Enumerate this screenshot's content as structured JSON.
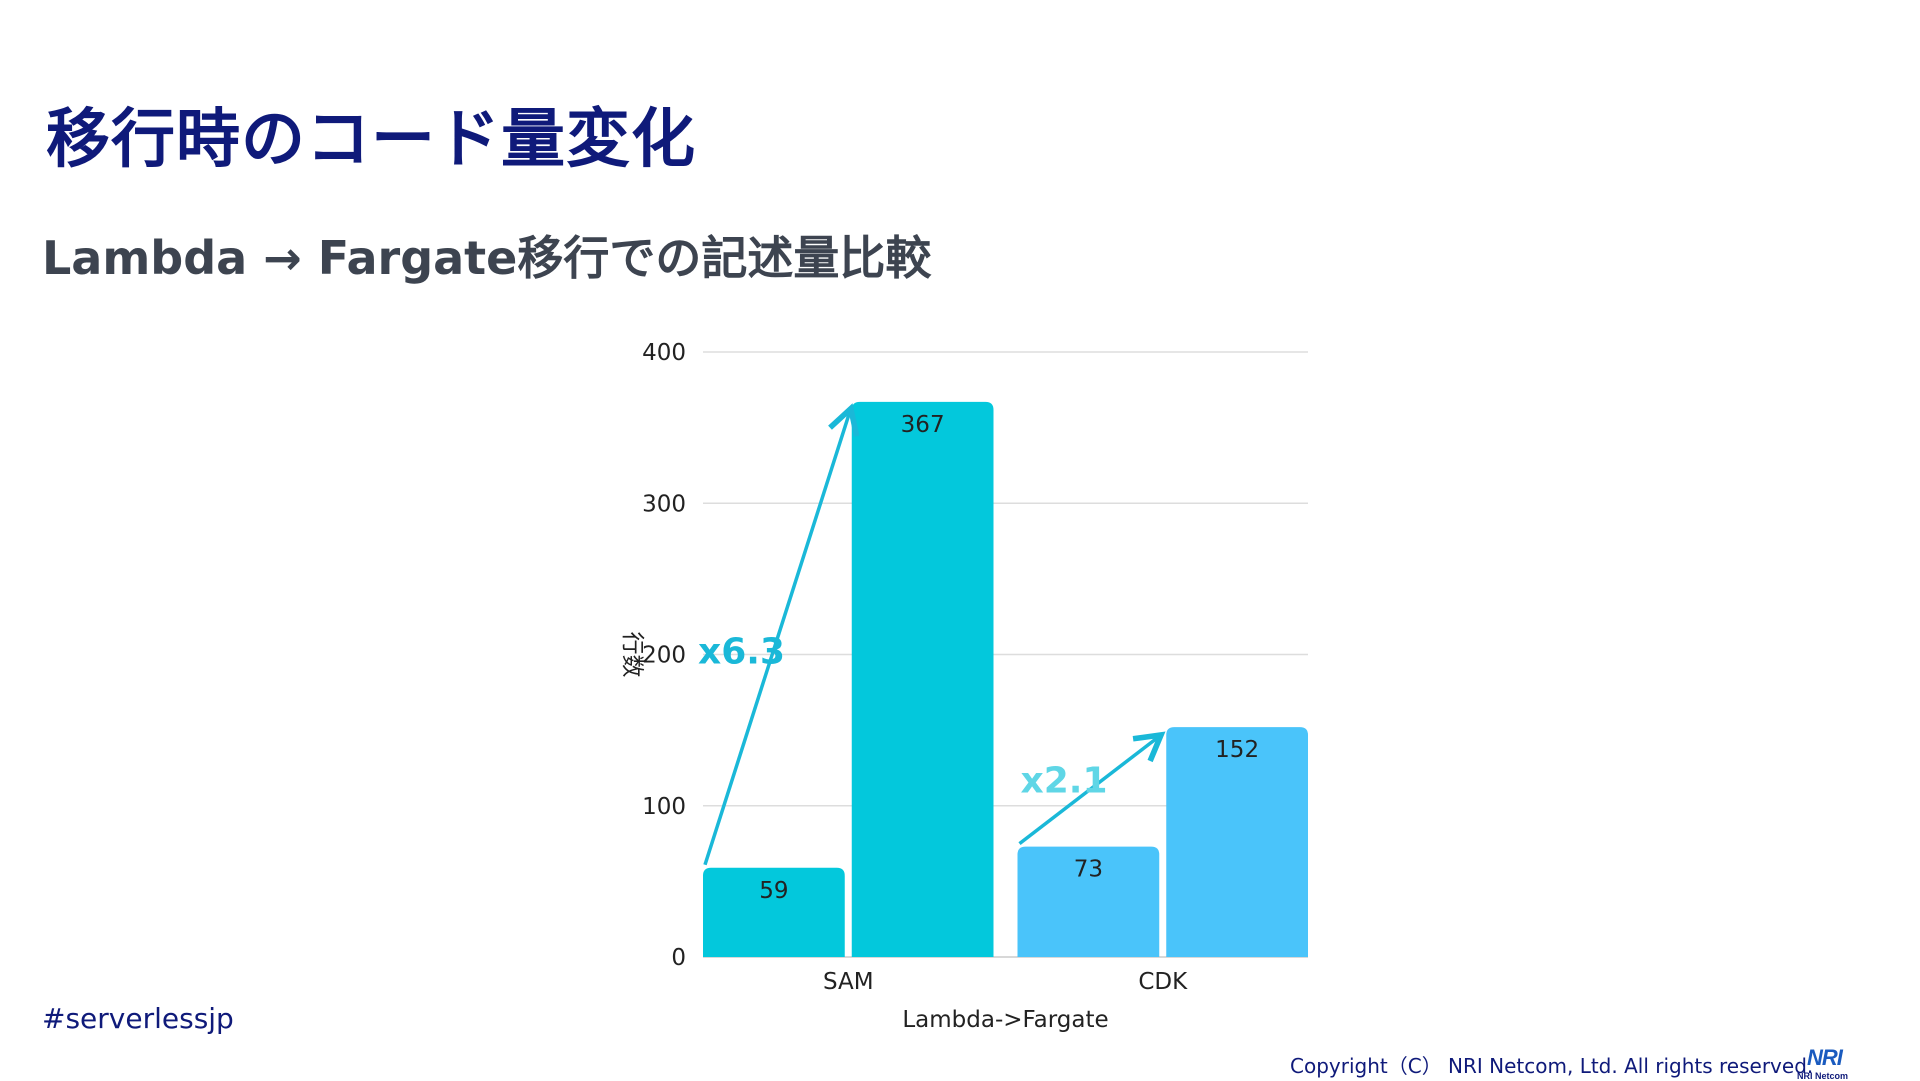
{
  "slide": {
    "title": "移行時のコード量変化",
    "subtitle": "Lambda → Fargate移行での記述量比較",
    "hashtag": "#serverlessjp",
    "copyright": "Copyright（C） NRI Netcom, Ltd. All rights reserved.",
    "logo": {
      "big": "NRI",
      "small": "NRI Netcom"
    }
  },
  "chart_data": {
    "type": "bar",
    "categories": [
      "SAM",
      "CDK"
    ],
    "bars": [
      {
        "category": "SAM",
        "value": 59,
        "color": "#03c8dc"
      },
      {
        "category": "SAM",
        "value": 367,
        "color": "#03c8dc"
      },
      {
        "category": "CDK",
        "value": 73,
        "color": "#4ac4fa"
      },
      {
        "category": "CDK",
        "value": 152,
        "color": "#4ac4fa"
      }
    ],
    "xlabel": "Lambda->Fargate",
    "ylabel": "行数",
    "ylim": [
      0,
      400
    ],
    "yticks": [
      0,
      100,
      200,
      300,
      400
    ],
    "grid": true,
    "annotations": [
      {
        "text": "x6.3",
        "color": "#1ab8d8",
        "from": {
          "category": "SAM",
          "value": 59
        },
        "to": {
          "category": "SAM",
          "value": 367
        }
      },
      {
        "text": "x2.1",
        "color": "#5fd6e6",
        "from": {
          "category": "CDK",
          "value": 73
        },
        "to": {
          "category": "CDK",
          "value": 152
        }
      }
    ]
  }
}
